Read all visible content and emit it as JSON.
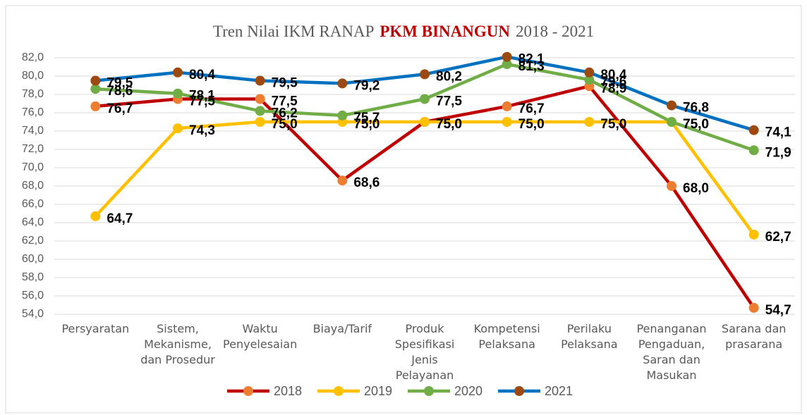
{
  "chart_data": {
    "type": "line",
    "title_parts": [
      "Tren Nilai IKM RANAP",
      "PKM BINANGUN",
      "2018 - 2021"
    ],
    "categories": [
      "Persyaratan",
      "Sistem, Mekanisme, dan Prosedur",
      "Waktu Penyelesaian",
      "Biaya/Tarif",
      "Produk Spesifikasi Jenis Pelayanan",
      "Kompetensi Pelaksana",
      "Perilaku Pelaksana",
      "Penanganan Pengaduan, Saran dan Masukan",
      "Sarana dan prasarana"
    ],
    "series": [
      {
        "name": "2018",
        "color": "#c00000",
        "marker_color": "#ed7d31",
        "values": [
          76.7,
          77.5,
          77.5,
          68.6,
          75.0,
          76.7,
          78.9,
          68.0,
          54.7
        ],
        "value_labels": [
          "76,7",
          "77,5",
          "77,5",
          "68,6",
          "75,0",
          "76,7",
          "78,9",
          "68,0",
          "54,7"
        ]
      },
      {
        "name": "2019",
        "color": "#ffc000",
        "marker_color": "#ffc000",
        "values": [
          64.7,
          74.3,
          75.0,
          75.0,
          75.0,
          75.0,
          75.0,
          75.0,
          62.7
        ],
        "value_labels": [
          "64,7",
          "74,3",
          "75,0",
          "75,0",
          "75,0",
          "75,0",
          "75,0",
          "75,0",
          "62,7"
        ]
      },
      {
        "name": "2020",
        "color": "#70ad47",
        "marker_color": "#70ad47",
        "values": [
          78.6,
          78.1,
          76.2,
          75.7,
          77.5,
          81.3,
          79.6,
          75.0,
          71.9
        ],
        "value_labels": [
          "78,6",
          "78,1",
          "76,2",
          "75,7",
          "77,5",
          "81,3",
          "79,6",
          "75,0",
          "71,9"
        ]
      },
      {
        "name": "2021",
        "color": "#0070c0",
        "marker_color": "#9c4a12",
        "values": [
          79.5,
          80.4,
          79.5,
          79.2,
          80.2,
          82.1,
          80.4,
          76.8,
          74.1
        ],
        "value_labels": [
          "79,5",
          "80,4",
          "79,5",
          "79,2",
          "80,2",
          "82,1",
          "80,4",
          "76,8",
          "74,1"
        ]
      }
    ],
    "ylim": [
      54,
      82
    ],
    "yticks": [
      {
        "value": 54,
        "label": "54,0"
      },
      {
        "value": 56,
        "label": "56,0"
      },
      {
        "value": 58,
        "label": "58,0"
      },
      {
        "value": 60,
        "label": "60,0"
      },
      {
        "value": 62,
        "label": "62,0"
      },
      {
        "value": 64,
        "label": "64,0"
      },
      {
        "value": 66,
        "label": "66,0"
      },
      {
        "value": 68,
        "label": "68,0"
      },
      {
        "value": 70,
        "label": "70,0"
      },
      {
        "value": 72,
        "label": "72,0"
      },
      {
        "value": 74,
        "label": "74,0"
      },
      {
        "value": 76,
        "label": "76,0"
      },
      {
        "value": 78,
        "label": "78,0"
      },
      {
        "value": 80,
        "label": "80,0"
      },
      {
        "value": 82,
        "label": "82,0"
      }
    ],
    "grid": true,
    "legend": "bottom"
  }
}
